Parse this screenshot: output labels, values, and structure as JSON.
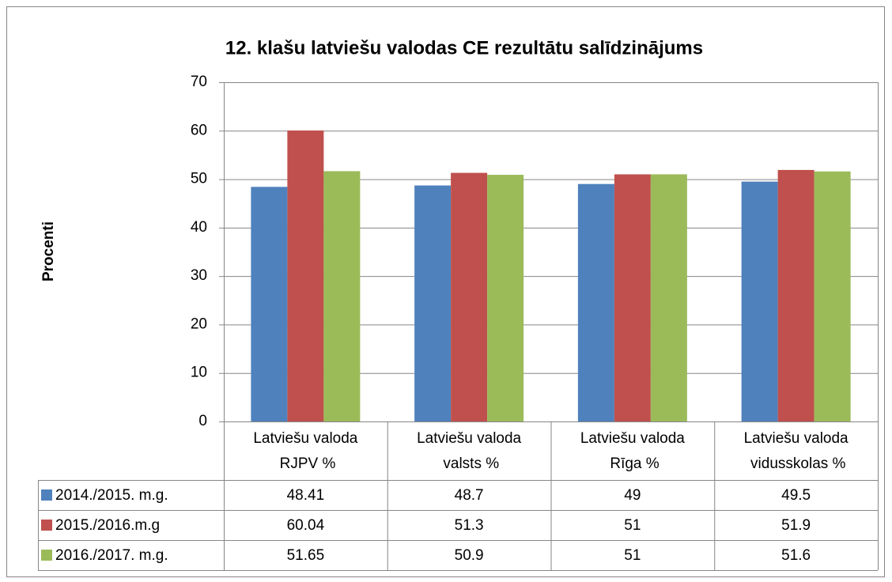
{
  "chart_data": {
    "type": "bar",
    "title": "12. klašu latviešu valodas CE rezultātu salīdzinājums",
    "y_label": "Procenti",
    "categories": [
      "Latviešu valoda RJPV %",
      "Latviešu valoda valsts %",
      "Latviešu valoda Rīga %",
      "Latviešu valoda vidusskolas %"
    ],
    "series": [
      {
        "name": "2014./2015. m.g.",
        "color": "#4f81bd",
        "values": [
          48.41,
          48.7,
          49,
          49.5
        ]
      },
      {
        "name": "2015./2016.m.g",
        "color": "#c0504d",
        "values": [
          60.04,
          51.3,
          51,
          51.9
        ]
      },
      {
        "name": "2016./2017. m.g.",
        "color": "#9bbb59",
        "values": [
          51.65,
          50.9,
          51,
          51.6
        ]
      }
    ],
    "ylim": [
      0,
      70
    ],
    "yticks": [
      0,
      10,
      20,
      30,
      40,
      50,
      60,
      70
    ],
    "grid": true,
    "legend": "data-table"
  }
}
